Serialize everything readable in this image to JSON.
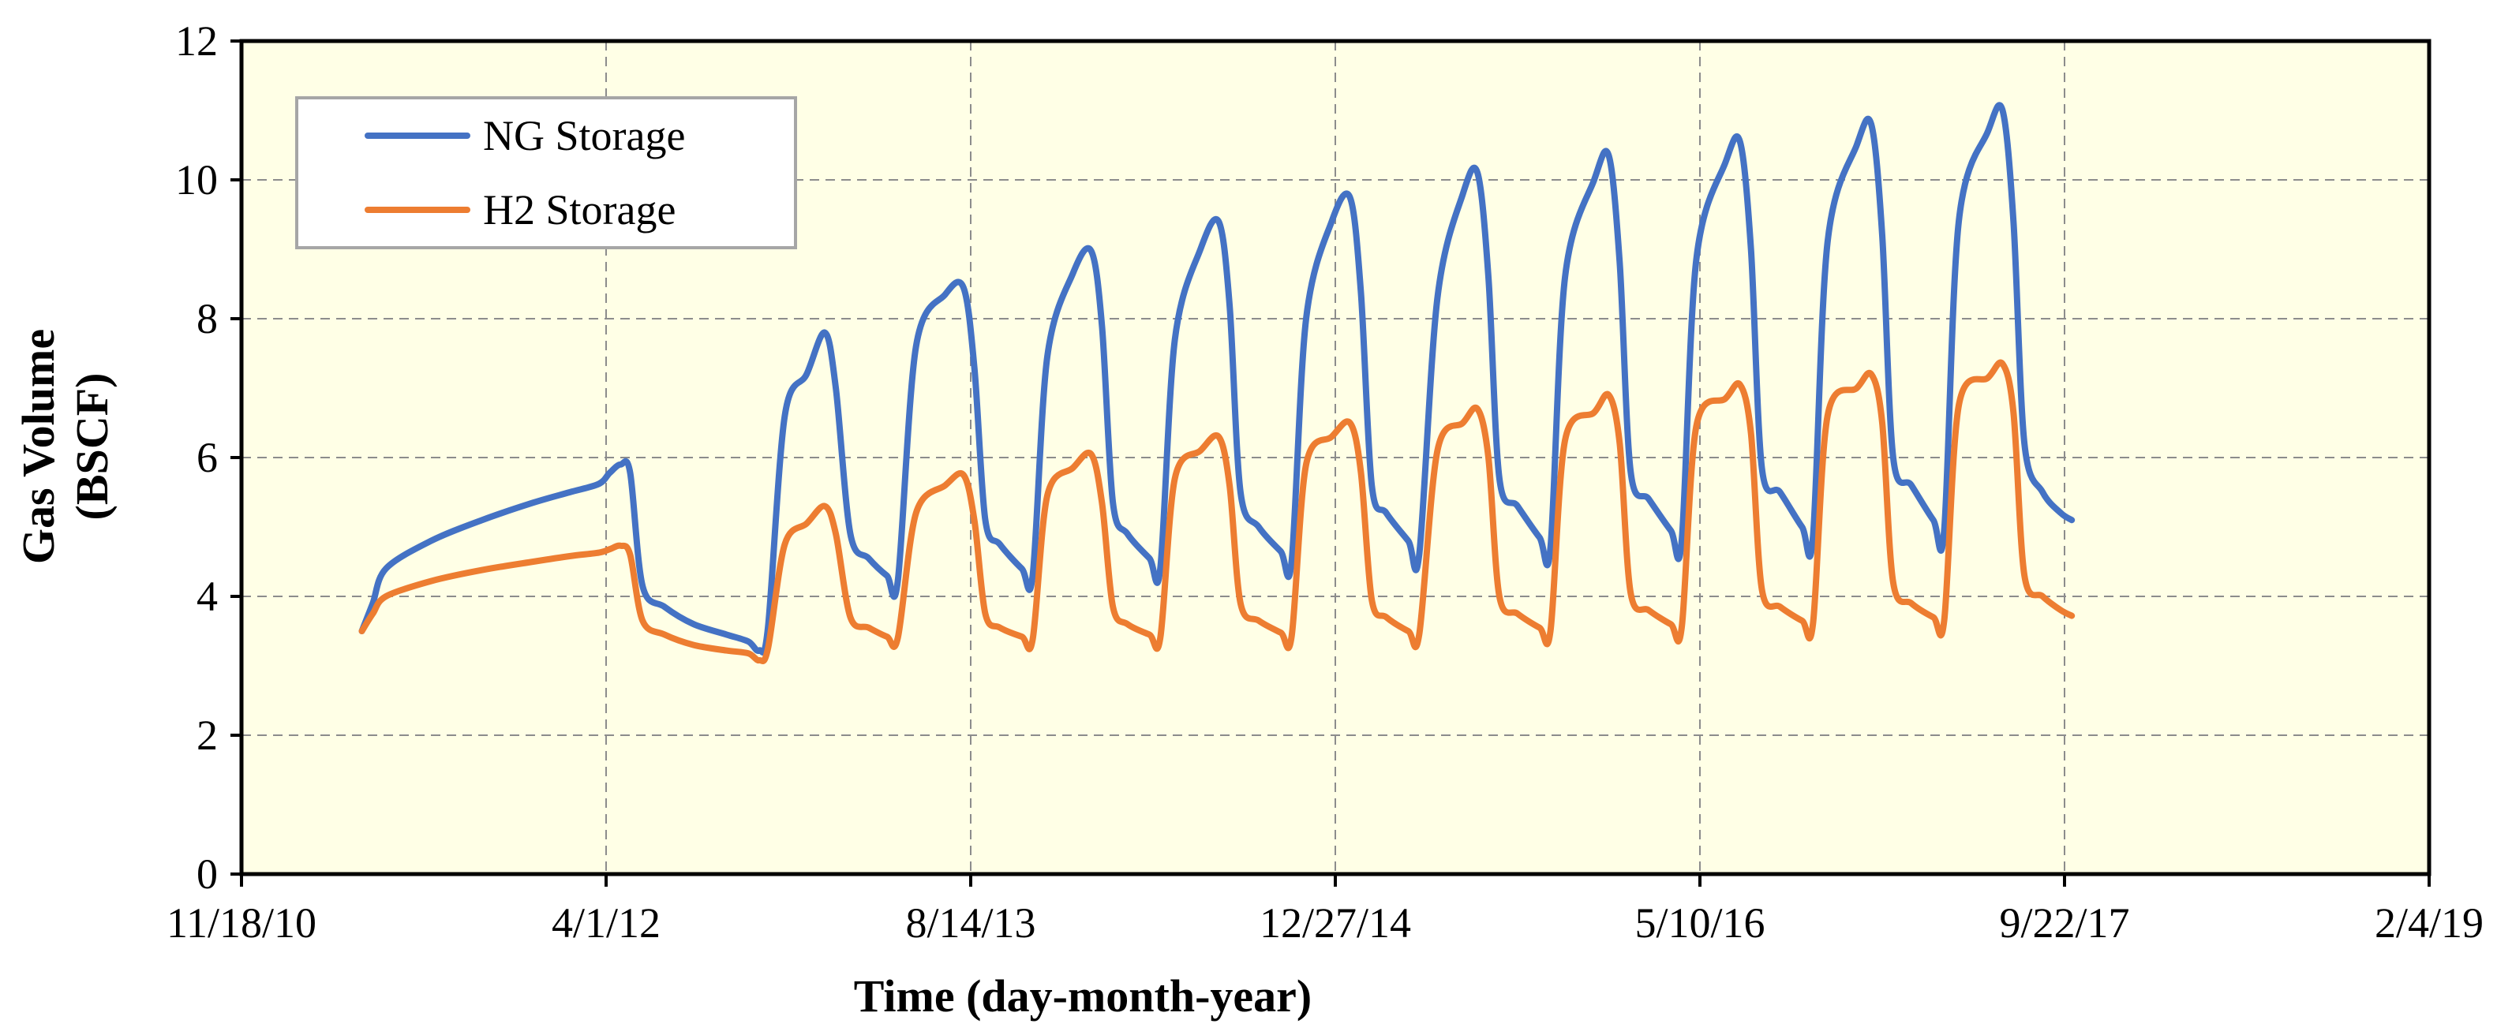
{
  "chart_data": {
    "type": "line",
    "title": "",
    "xlabel": "Time (day-month-year)",
    "ylabel_lines": [
      "Gas Volume",
      "(BSCF)"
    ],
    "x_tick_labels": [
      "11/18/10",
      "4/1/12",
      "8/14/13",
      "12/27/14",
      "5/10/16",
      "9/22/17",
      "2/4/19"
    ],
    "x_tick_days": [
      0,
      500,
      1000,
      1500,
      2000,
      2500,
      3000
    ],
    "xlim": [
      0,
      3000
    ],
    "y_ticks": [
      0,
      2,
      4,
      6,
      8,
      10,
      12
    ],
    "ylim": [
      0,
      12
    ],
    "grid": true,
    "legend_position": "top-left",
    "plot_background": "#ffffe6",
    "series": [
      {
        "name": "NG Storage",
        "color": "#4472c4",
        "points": [
          [
            165,
            3.5
          ],
          [
            180,
            3.9
          ],
          [
            198,
            4.4
          ],
          [
            260,
            4.8
          ],
          [
            330,
            5.1
          ],
          [
            400,
            5.35
          ],
          [
            450,
            5.5
          ],
          [
            490,
            5.62
          ],
          [
            505,
            5.78
          ],
          [
            520,
            5.9
          ],
          [
            533,
            5.78
          ],
          [
            550,
            4.15
          ],
          [
            580,
            3.85
          ],
          [
            620,
            3.6
          ],
          [
            665,
            3.45
          ],
          [
            695,
            3.35
          ],
          [
            710,
            3.22
          ],
          [
            722,
            3.55
          ],
          [
            745,
            6.6
          ],
          [
            775,
            7.2
          ],
          [
            800,
            7.8
          ],
          [
            815,
            7.0
          ],
          [
            835,
            4.9
          ],
          [
            860,
            4.55
          ],
          [
            885,
            4.3
          ],
          [
            900,
            4.22
          ],
          [
            925,
            7.6
          ],
          [
            965,
            8.35
          ],
          [
            990,
            8.45
          ],
          [
            1005,
            7.3
          ],
          [
            1020,
            5.1
          ],
          [
            1040,
            4.75
          ],
          [
            1070,
            4.4
          ],
          [
            1085,
            4.3
          ],
          [
            1105,
            7.45
          ],
          [
            1140,
            8.65
          ],
          [
            1165,
            8.98
          ],
          [
            1180,
            7.9
          ],
          [
            1195,
            5.35
          ],
          [
            1215,
            4.9
          ],
          [
            1245,
            4.55
          ],
          [
            1260,
            4.4
          ],
          [
            1280,
            7.7
          ],
          [
            1315,
            9.0
          ],
          [
            1340,
            9.4
          ],
          [
            1355,
            8.2
          ],
          [
            1370,
            5.5
          ],
          [
            1395,
            5.0
          ],
          [
            1425,
            4.65
          ],
          [
            1440,
            4.5
          ],
          [
            1460,
            8.0
          ],
          [
            1495,
            9.4
          ],
          [
            1520,
            9.75
          ],
          [
            1535,
            8.4
          ],
          [
            1550,
            5.6
          ],
          [
            1570,
            5.2
          ],
          [
            1600,
            4.8
          ],
          [
            1615,
            4.6
          ],
          [
            1640,
            8.3
          ],
          [
            1675,
            9.8
          ],
          [
            1695,
            10.1
          ],
          [
            1710,
            8.6
          ],
          [
            1725,
            5.7
          ],
          [
            1750,
            5.3
          ],
          [
            1780,
            4.85
          ],
          [
            1795,
            4.7
          ],
          [
            1815,
            8.6
          ],
          [
            1855,
            10.0
          ],
          [
            1875,
            10.35
          ],
          [
            1890,
            8.8
          ],
          [
            1905,
            5.8
          ],
          [
            1930,
            5.4
          ],
          [
            1960,
            4.95
          ],
          [
            1975,
            4.8
          ],
          [
            1995,
            8.85
          ],
          [
            2035,
            10.25
          ],
          [
            2055,
            10.55
          ],
          [
            2070,
            9.0
          ],
          [
            2085,
            5.85
          ],
          [
            2110,
            5.5
          ],
          [
            2140,
            5.0
          ],
          [
            2155,
            4.85
          ],
          [
            2175,
            9.1
          ],
          [
            2215,
            10.5
          ],
          [
            2235,
            10.8
          ],
          [
            2250,
            9.2
          ],
          [
            2265,
            6.0
          ],
          [
            2290,
            5.6
          ],
          [
            2320,
            5.1
          ],
          [
            2335,
            4.95
          ],
          [
            2355,
            9.4
          ],
          [
            2395,
            10.7
          ],
          [
            2415,
            11.0
          ],
          [
            2430,
            9.4
          ],
          [
            2445,
            6.2
          ],
          [
            2470,
            5.5
          ],
          [
            2495,
            5.2
          ],
          [
            2510,
            5.1
          ]
        ]
      },
      {
        "name": "H2 Storage",
        "color": "#ed7d31",
        "points": [
          [
            165,
            3.5
          ],
          [
            180,
            3.75
          ],
          [
            198,
            4.0
          ],
          [
            260,
            4.22
          ],
          [
            330,
            4.38
          ],
          [
            400,
            4.5
          ],
          [
            450,
            4.58
          ],
          [
            490,
            4.63
          ],
          [
            505,
            4.68
          ],
          [
            520,
            4.73
          ],
          [
            533,
            4.6
          ],
          [
            550,
            3.65
          ],
          [
            580,
            3.45
          ],
          [
            620,
            3.3
          ],
          [
            665,
            3.22
          ],
          [
            695,
            3.18
          ],
          [
            710,
            3.08
          ],
          [
            722,
            3.25
          ],
          [
            745,
            4.75
          ],
          [
            775,
            5.05
          ],
          [
            800,
            5.3
          ],
          [
            815,
            4.9
          ],
          [
            835,
            3.7
          ],
          [
            860,
            3.55
          ],
          [
            885,
            3.42
          ],
          [
            900,
            3.4
          ],
          [
            925,
            5.2
          ],
          [
            965,
            5.6
          ],
          [
            990,
            5.75
          ],
          [
            1005,
            5.1
          ],
          [
            1020,
            3.75
          ],
          [
            1040,
            3.55
          ],
          [
            1070,
            3.42
          ],
          [
            1085,
            3.38
          ],
          [
            1105,
            5.45
          ],
          [
            1140,
            5.85
          ],
          [
            1165,
            6.05
          ],
          [
            1180,
            5.35
          ],
          [
            1195,
            3.85
          ],
          [
            1215,
            3.6
          ],
          [
            1245,
            3.45
          ],
          [
            1260,
            3.4
          ],
          [
            1280,
            5.7
          ],
          [
            1315,
            6.1
          ],
          [
            1340,
            6.3
          ],
          [
            1355,
            5.6
          ],
          [
            1370,
            3.9
          ],
          [
            1395,
            3.65
          ],
          [
            1425,
            3.48
          ],
          [
            1440,
            3.42
          ],
          [
            1460,
            5.9
          ],
          [
            1495,
            6.3
          ],
          [
            1520,
            6.5
          ],
          [
            1535,
            5.8
          ],
          [
            1550,
            3.95
          ],
          [
            1570,
            3.7
          ],
          [
            1600,
            3.5
          ],
          [
            1615,
            3.45
          ],
          [
            1640,
            6.1
          ],
          [
            1675,
            6.5
          ],
          [
            1695,
            6.7
          ],
          [
            1710,
            6.0
          ],
          [
            1725,
            4.0
          ],
          [
            1750,
            3.75
          ],
          [
            1780,
            3.55
          ],
          [
            1795,
            3.5
          ],
          [
            1815,
            6.25
          ],
          [
            1855,
            6.65
          ],
          [
            1875,
            6.9
          ],
          [
            1890,
            6.2
          ],
          [
            1905,
            4.05
          ],
          [
            1930,
            3.8
          ],
          [
            1960,
            3.6
          ],
          [
            1975,
            3.55
          ],
          [
            1995,
            6.45
          ],
          [
            2035,
            6.85
          ],
          [
            2055,
            7.05
          ],
          [
            2070,
            6.35
          ],
          [
            2085,
            4.1
          ],
          [
            2110,
            3.85
          ],
          [
            2140,
            3.65
          ],
          [
            2155,
            3.6
          ],
          [
            2175,
            6.6
          ],
          [
            2215,
            7.0
          ],
          [
            2235,
            7.2
          ],
          [
            2250,
            6.5
          ],
          [
            2265,
            4.2
          ],
          [
            2290,
            3.9
          ],
          [
            2320,
            3.7
          ],
          [
            2335,
            3.65
          ],
          [
            2355,
            6.75
          ],
          [
            2395,
            7.15
          ],
          [
            2415,
            7.35
          ],
          [
            2430,
            6.65
          ],
          [
            2445,
            4.3
          ],
          [
            2470,
            4.0
          ],
          [
            2495,
            3.8
          ],
          [
            2510,
            3.72
          ]
        ]
      }
    ]
  }
}
